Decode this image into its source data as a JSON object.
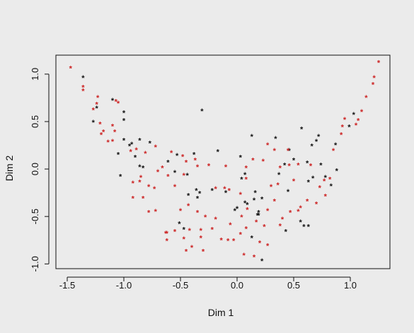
{
  "chart_data": {
    "type": "scatter",
    "title": "",
    "xlabel": "Dim 1",
    "ylabel": "Dim 2",
    "xlim": [
      -1.6,
      1.35
    ],
    "ylim": [
      -1.05,
      1.2
    ],
    "x_ticks": [
      -1.5,
      -1.0,
      -0.5,
      0.0,
      0.5,
      1.0
    ],
    "x_tick_labels": [
      "-1.5",
      "-1.0",
      "-0.5",
      "0.0",
      "0.5",
      "1.0"
    ],
    "y_ticks": [
      -1.0,
      -0.5,
      0.0,
      0.5,
      1.0
    ],
    "y_tick_labels": [
      "-1.0",
      "-0.5",
      "0.0",
      "0.5",
      "1.0"
    ],
    "marker": "*",
    "grid": false,
    "series": [
      {
        "color": "#111111",
        "points": [
          [
            -1.36,
            0.97
          ],
          [
            -1.24,
            0.65
          ],
          [
            -1.27,
            0.5
          ],
          [
            -1.1,
            0.73
          ],
          [
            -1.0,
            0.6
          ],
          [
            -1.0,
            0.52
          ],
          [
            -1.0,
            0.31
          ],
          [
            -0.93,
            0.27
          ],
          [
            -0.95,
            0.25
          ],
          [
            -0.86,
            0.31
          ],
          [
            -1.05,
            0.16
          ],
          [
            -0.9,
            0.13
          ],
          [
            -0.86,
            0.03
          ],
          [
            -0.83,
            0.02
          ],
          [
            -0.77,
            0.28
          ],
          [
            -1.03,
            -0.07
          ],
          [
            -0.61,
            0.08
          ],
          [
            -0.53,
            0.15
          ],
          [
            -0.55,
            -0.03
          ],
          [
            -0.38,
            0.16
          ],
          [
            -0.44,
            -0.06
          ],
          [
            -0.43,
            -0.27
          ],
          [
            -0.36,
            -0.22
          ],
          [
            -0.33,
            -0.25
          ],
          [
            -0.35,
            -0.3
          ],
          [
            -0.31,
            0.62
          ],
          [
            -0.17,
            0.19
          ],
          [
            -0.22,
            -0.22
          ],
          [
            -0.1,
            -0.24
          ],
          [
            0.03,
            0.13
          ],
          [
            0.04,
            -0.1
          ],
          [
            0.07,
            -0.05
          ],
          [
            0.13,
            0.35
          ],
          [
            0.07,
            -0.35
          ],
          [
            0.09,
            -0.37
          ],
          [
            0.16,
            -0.24
          ],
          [
            0.15,
            -0.32
          ],
          [
            0.22,
            -0.31
          ],
          [
            0.19,
            -0.45
          ],
          [
            0.19,
            -0.48
          ],
          [
            0.0,
            -0.41
          ],
          [
            -0.02,
            -0.43
          ],
          [
            0.34,
            0.33
          ],
          [
            0.37,
            -0.05
          ],
          [
            0.42,
            0.05
          ],
          [
            0.46,
            0.2
          ],
          [
            0.5,
            0.1
          ],
          [
            0.57,
            0.43
          ],
          [
            0.66,
            0.25
          ],
          [
            0.62,
            0.07
          ],
          [
            0.7,
            0.3
          ],
          [
            0.72,
            0.35
          ],
          [
            0.74,
            0.05
          ],
          [
            0.67,
            -0.09
          ],
          [
            0.78,
            -0.08
          ],
          [
            0.83,
            -0.17
          ],
          [
            0.88,
            -0.01
          ],
          [
            0.87,
            0.26
          ],
          [
            0.99,
            0.45
          ],
          [
            1.03,
            0.58
          ],
          [
            0.56,
            -0.55
          ],
          [
            0.59,
            -0.6
          ],
          [
            0.63,
            -0.6
          ],
          [
            0.43,
            -0.65
          ],
          [
            0.63,
            -0.13
          ],
          [
            0.45,
            -0.23
          ],
          [
            -0.51,
            -0.57
          ],
          [
            -0.47,
            -0.63
          ],
          [
            0.22,
            -0.96
          ],
          [
            0.18,
            -0.48
          ],
          [
            0.13,
            -0.72
          ]
        ]
      },
      {
        "color": "#cc2222",
        "points": [
          [
            -1.47,
            1.07
          ],
          [
            -1.36,
            0.87
          ],
          [
            -1.36,
            0.83
          ],
          [
            -1.23,
            0.76
          ],
          [
            -1.24,
            0.69
          ],
          [
            -1.27,
            0.63
          ],
          [
            -1.21,
            0.48
          ],
          [
            -1.18,
            0.4
          ],
          [
            -1.2,
            0.37
          ],
          [
            -1.14,
            0.29
          ],
          [
            -1.1,
            0.3
          ],
          [
            -1.07,
            0.72
          ],
          [
            -1.05,
            0.7
          ],
          [
            -1.1,
            0.46
          ],
          [
            -1.08,
            0.4
          ],
          [
            -0.94,
            0.19
          ],
          [
            -0.89,
            0.21
          ],
          [
            -0.81,
            0.17
          ],
          [
            -0.72,
            0.24
          ],
          [
            -0.7,
            -0.02
          ],
          [
            -0.85,
            -0.08
          ],
          [
            -0.73,
            -0.2
          ],
          [
            -0.86,
            -0.13
          ],
          [
            -0.92,
            -0.14
          ],
          [
            -0.78,
            -0.18
          ],
          [
            -0.83,
            -0.3
          ],
          [
            -0.92,
            -0.3
          ],
          [
            -0.78,
            -0.45
          ],
          [
            -0.72,
            -0.44
          ],
          [
            -0.63,
            -0.67
          ],
          [
            -0.62,
            -0.67
          ],
          [
            -0.62,
            -0.75
          ],
          [
            -0.55,
            -0.65
          ],
          [
            -0.47,
            -0.73
          ],
          [
            -0.45,
            -0.86
          ],
          [
            -0.42,
            -0.64
          ],
          [
            -0.32,
            -0.72
          ],
          [
            -0.4,
            -0.82
          ],
          [
            -0.3,
            -0.86
          ],
          [
            -0.32,
            -0.64
          ],
          [
            -0.5,
            -0.43
          ],
          [
            -0.43,
            -0.38
          ],
          [
            -0.35,
            -0.45
          ],
          [
            -0.28,
            -0.5
          ],
          [
            -0.19,
            -0.52
          ],
          [
            -0.22,
            -0.63
          ],
          [
            -0.14,
            -0.74
          ],
          [
            -0.08,
            -0.75
          ],
          [
            -0.03,
            -0.75
          ],
          [
            -0.06,
            -0.58
          ],
          [
            0.04,
            -0.5
          ],
          [
            0.09,
            -0.42
          ],
          [
            0.03,
            -0.26
          ],
          [
            -0.07,
            -0.22
          ],
          [
            0.08,
            -0.1
          ],
          [
            0.14,
            0.1
          ],
          [
            0.23,
            0.09
          ],
          [
            0.27,
            0.26
          ],
          [
            0.33,
            0.2
          ],
          [
            0.45,
            0.2
          ],
          [
            0.33,
            -0.33
          ],
          [
            0.27,
            -0.43
          ],
          [
            0.24,
            -0.6
          ],
          [
            0.17,
            -0.55
          ],
          [
            0.08,
            -0.62
          ],
          [
            0.03,
            -0.68
          ],
          [
            0.06,
            -0.9
          ],
          [
            0.15,
            -0.92
          ],
          [
            0.2,
            -0.77
          ],
          [
            0.27,
            -0.8
          ],
          [
            0.38,
            -0.59
          ],
          [
            0.4,
            -0.52
          ],
          [
            0.47,
            -0.45
          ],
          [
            0.54,
            -0.44
          ],
          [
            0.56,
            -0.4
          ],
          [
            0.62,
            -0.33
          ],
          [
            0.7,
            -0.36
          ],
          [
            0.78,
            -0.28
          ],
          [
            0.73,
            -0.19
          ],
          [
            0.77,
            -0.12
          ],
          [
            0.82,
            -0.1
          ],
          [
            0.85,
            0.2
          ],
          [
            0.92,
            0.37
          ],
          [
            0.93,
            0.45
          ],
          [
            0.95,
            0.53
          ],
          [
            1.05,
            0.47
          ],
          [
            1.07,
            0.52
          ],
          [
            1.1,
            0.61
          ],
          [
            1.14,
            0.76
          ],
          [
            1.2,
            0.9
          ],
          [
            1.21,
            0.97
          ],
          [
            1.25,
            1.13
          ],
          [
            0.65,
            0.04
          ],
          [
            0.54,
            0.05
          ],
          [
            0.46,
            0.04
          ],
          [
            0.38,
            0.02
          ],
          [
            0.5,
            -0.12
          ],
          [
            0.36,
            -0.16
          ],
          [
            0.3,
            -0.18
          ],
          [
            0.08,
            0.02
          ],
          [
            -0.1,
            0.03
          ],
          [
            -0.11,
            -0.2
          ],
          [
            -0.19,
            -0.2
          ],
          [
            -0.25,
            0.04
          ],
          [
            -0.35,
            0.03
          ],
          [
            -0.37,
            0.1
          ],
          [
            -0.48,
            0.14
          ],
          [
            -0.58,
            0.18
          ],
          [
            -0.55,
            -0.18
          ],
          [
            -0.47,
            -0.06
          ],
          [
            -0.61,
            -0.07
          ],
          [
            -0.66,
            0.02
          ],
          [
            -0.45,
            0.08
          ]
        ]
      }
    ]
  }
}
